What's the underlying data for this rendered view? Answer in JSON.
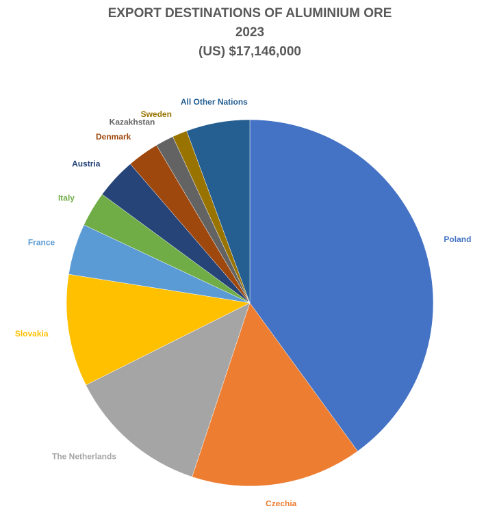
{
  "chart_data": {
    "type": "pie",
    "title": [
      "EXPORT DESTINATIONS OF ALUMINIUM ORE",
      "2023",
      "(US) $17,146,000"
    ],
    "categories": [
      "Poland",
      "Czechia",
      "The Netherlands",
      "Slovakia",
      "France",
      "Italy",
      "Austria",
      "Denmark",
      "Kazakhstan",
      "Sweden",
      "All Other Nations"
    ],
    "values": [
      40,
      15.1,
      12.5,
      9.9,
      4.5,
      3.1,
      3.6,
      2.8,
      1.6,
      1.3,
      5.6
    ],
    "colors": [
      "#4472c4",
      "#ed7d31",
      "#a5a5a5",
      "#ffc000",
      "#5b9bd5",
      "#70ad47",
      "#264478",
      "#9e480e",
      "#636363",
      "#997300",
      "#255e91"
    ]
  }
}
